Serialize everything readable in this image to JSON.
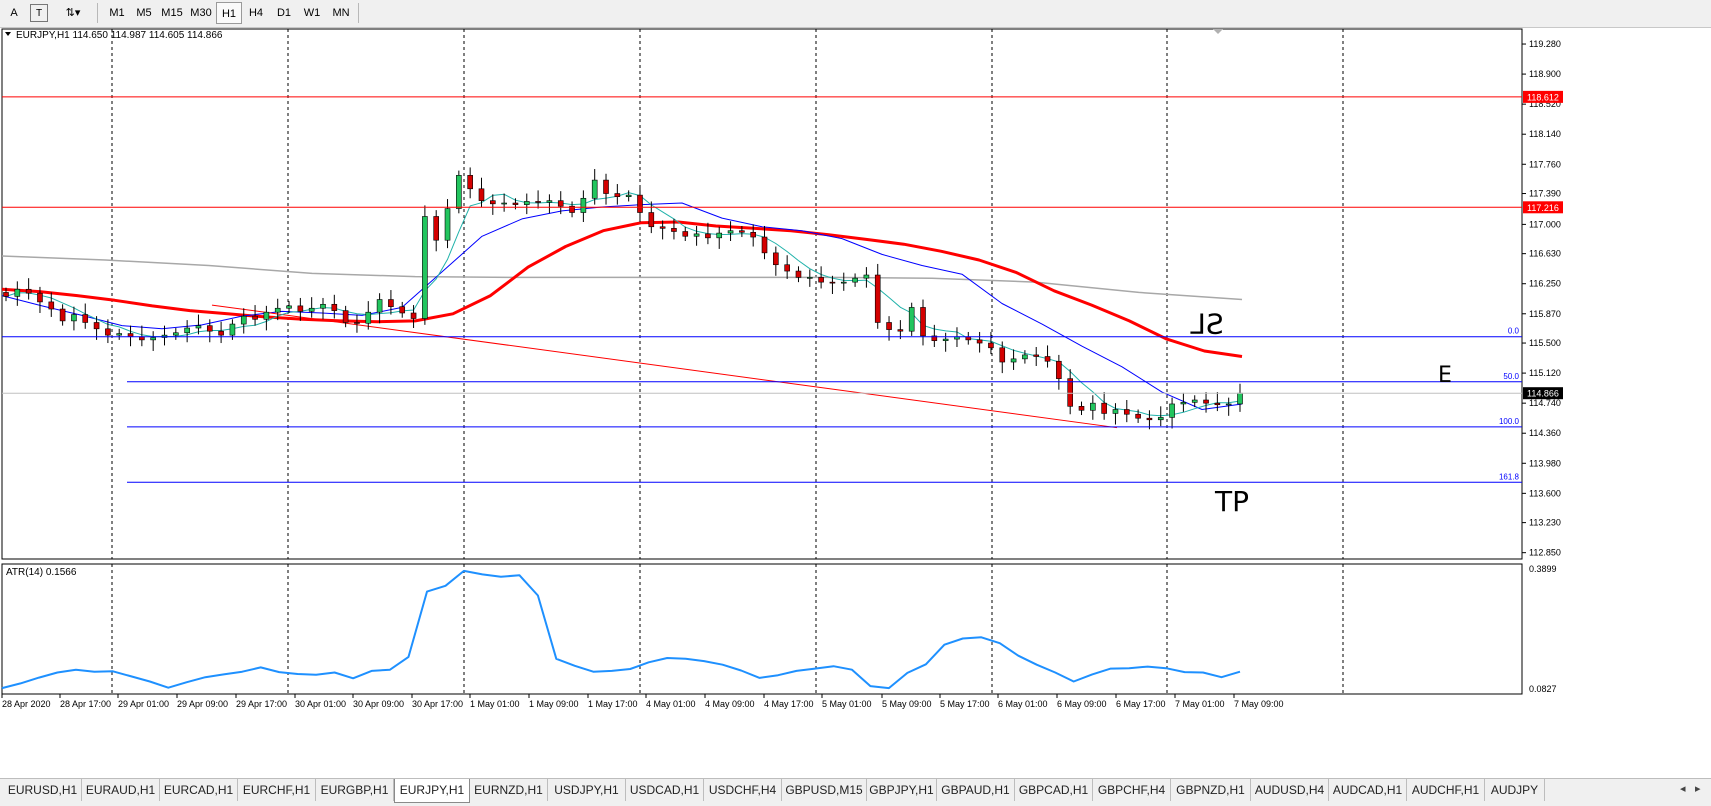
{
  "toolbar": {
    "tools": [
      {
        "label": "A",
        "icon": "text-tool-icon"
      },
      {
        "label": "T",
        "icon": "text-label-tool-icon"
      },
      {
        "label": "⇅▾",
        "icon": "arrows-tool-icon"
      }
    ],
    "timeframes": [
      "M1",
      "M5",
      "M15",
      "M30",
      "H1",
      "H4",
      "D1",
      "W1",
      "MN"
    ],
    "active_timeframe": "H1"
  },
  "chart_data": {
    "type": "candlestick",
    "title": "EURJPY,H1  114.650 114.987 114.605 114.866",
    "symbol": "EURJPY",
    "timeframe": "H1",
    "ohlc_current": {
      "open": 114.65,
      "high": 114.987,
      "low": 114.605,
      "close": 114.866
    },
    "ylim": [
      112.77,
      119.47
    ],
    "y_ticks": [
      "119.280",
      "118.900",
      "118.520",
      "118.140",
      "117.760",
      "117.390",
      "117.000",
      "116.630",
      "116.250",
      "115.870",
      "115.500",
      "115.120",
      "114.740",
      "114.360",
      "113.980",
      "113.600",
      "113.230",
      "112.850"
    ],
    "x_tick_labels": [
      "28 Apr 2020",
      "28 Apr 17:00",
      "29 Apr 01:00",
      "29 Apr 09:00",
      "29 Apr 17:00",
      "30 Apr 01:00",
      "30 Apr 09:00",
      "30 Apr 17:00",
      "1 May 01:00",
      "1 May 09:00",
      "1 May 17:00",
      "4 May 01:00",
      "4 May 09:00",
      "4 May 17:00",
      "5 May 01:00",
      "5 May 09:00",
      "5 May 17:00",
      "6 May 01:00",
      "6 May 09:00",
      "6 May 17:00",
      "7 May 01:00",
      "7 May 09:00"
    ],
    "current_price_label": "114.866",
    "horizontal_lines": [
      {
        "price": 118.612,
        "label": "118.612",
        "color": "#ff0000"
      },
      {
        "price": 117.216,
        "label": "117.216",
        "color": "#ff0000"
      }
    ],
    "fibonacci": {
      "color": "#0000ff",
      "levels": [
        {
          "label": "0.0",
          "price": 115.58
        },
        {
          "label": "50.0",
          "price": 115.01
        },
        {
          "label": "100.0",
          "price": 114.44
        },
        {
          "label": "161.8",
          "price": 113.74
        }
      ]
    },
    "annotations": [
      {
        "text": "SL",
        "price": 115.72
      },
      {
        "text": "E",
        "price": 115.11
      },
      {
        "text": "TP",
        "price": 113.48
      }
    ],
    "candles_close_sample": [
      116.09,
      116.18,
      116.13,
      116.02,
      115.93,
      115.78,
      115.86,
      115.76,
      115.68,
      115.6,
      115.62,
      115.58,
      115.54,
      115.57,
      115.6,
      115.63,
      115.69,
      115.72,
      115.65,
      115.6,
      115.74,
      115.84,
      115.8,
      115.89,
      115.94,
      115.97,
      115.9,
      115.94,
      115.99,
      115.91,
      115.76,
      115.75,
      115.89,
      116.05,
      115.96,
      115.88,
      115.81,
      117.1,
      116.8,
      117.2,
      117.62,
      117.45,
      117.3,
      117.26,
      117.27,
      117.25,
      117.29,
      117.28,
      117.3,
      117.23,
      117.15,
      117.33,
      117.56,
      117.39,
      117.35,
      117.37,
      117.15,
      116.97,
      116.95,
      116.91,
      116.85,
      116.88,
      116.83,
      116.89,
      116.92,
      116.9,
      116.84,
      116.64,
      116.49,
      116.41,
      116.33,
      116.33,
      116.27,
      116.26,
      116.27,
      116.32,
      116.36,
      115.76,
      115.67,
      115.65,
      115.95,
      115.59,
      115.53,
      115.55,
      115.58,
      115.54,
      115.5,
      115.44,
      115.26,
      115.3,
      115.35,
      115.33,
      115.27,
      115.05,
      114.7,
      114.65,
      114.74,
      114.61,
      114.66,
      114.6,
      114.55,
      114.53,
      114.56,
      114.73,
      114.75,
      114.78,
      114.74,
      114.72,
      114.73,
      114.866
    ],
    "moving_averages": [
      {
        "name": "MA slow",
        "color": "#ff0000",
        "values": [
          116.18,
          116.15,
          116.1,
          116.04,
          115.97,
          115.91,
          115.87,
          115.83,
          115.8,
          115.78,
          115.77,
          115.78,
          115.87,
          116.1,
          116.46,
          116.72,
          116.92,
          117.02,
          117.03,
          116.98,
          116.95,
          116.92,
          116.87,
          116.81,
          116.75,
          116.66,
          116.55,
          116.39,
          116.16,
          115.98,
          115.78,
          115.55,
          115.4,
          115.33
        ]
      },
      {
        "name": "MA medium",
        "color": "#0000ff",
        "values": [
          116.1,
          115.97,
          115.85,
          115.72,
          115.68,
          115.73,
          115.84,
          115.9,
          115.88,
          115.85,
          115.95,
          116.4,
          116.85,
          117.07,
          117.17,
          117.22,
          117.25,
          117.27,
          117.08,
          116.97,
          116.92,
          116.82,
          116.62,
          116.48,
          116.37,
          116.0,
          115.74,
          115.46,
          115.2,
          114.88,
          114.66,
          114.73
        ]
      },
      {
        "name": "MA long",
        "color": "#a8a8a8",
        "values": [
          116.6,
          116.55,
          116.48,
          116.38,
          116.34,
          116.33,
          116.33,
          116.33,
          116.33,
          116.32,
          116.27,
          116.14,
          116.05
        ]
      },
      {
        "name": "Trendline",
        "color": "#ff0000",
        "values": [
          115.98,
          114.43
        ]
      }
    ],
    "indicator": {
      "name": "ATR(14)",
      "label": "ATR(14) 0.1566",
      "value": 0.1566,
      "ylim": [
        0.0827,
        0.3899
      ],
      "y_ticks": [
        "0.3899",
        "0.0827"
      ],
      "color": "#1e90ff",
      "values": [
        0.085,
        0.097,
        0.112,
        0.125,
        0.132,
        0.127,
        0.128,
        0.115,
        0.102,
        0.086,
        0.1,
        0.113,
        0.12,
        0.127,
        0.138,
        0.126,
        0.121,
        0.119,
        0.125,
        0.11,
        0.129,
        0.132,
        0.165,
        0.332,
        0.347,
        0.385,
        0.376,
        0.37,
        0.374,
        0.322,
        0.16,
        0.142,
        0.127,
        0.129,
        0.134,
        0.151,
        0.162,
        0.16,
        0.154,
        0.145,
        0.13,
        0.111,
        0.118,
        0.129,
        0.135,
        0.141,
        0.132,
        0.09,
        0.085,
        0.124,
        0.146,
        0.196,
        0.212,
        0.215,
        0.2,
        0.168,
        0.145,
        0.125,
        0.102,
        0.12,
        0.135,
        0.136,
        0.14,
        0.136,
        0.126,
        0.125,
        0.113,
        0.127
      ]
    },
    "grid": true
  },
  "tabs": [
    "EURUSD,H1",
    "EURAUD,H1",
    "EURCAD,H1",
    "EURCHF,H1",
    "EURGBP,H1",
    "EURJPY,H1",
    "EURNZD,H1",
    "USDJPY,H1",
    "USDCAD,H1",
    "USDCHF,H4",
    "GBPUSD,M15",
    "GBPJPY,H1",
    "GBPAUD,H1",
    "GBPCAD,H1",
    "GBPCHF,H4",
    "GBPNZD,H1",
    "AUDUSD,H4",
    "AUDCAD,H1",
    "AUDCHF,H1",
    "AUDJPY"
  ],
  "active_tab": "EURJPY,H1",
  "tab_scroll": {
    "left": "◂",
    "right": "▸"
  }
}
